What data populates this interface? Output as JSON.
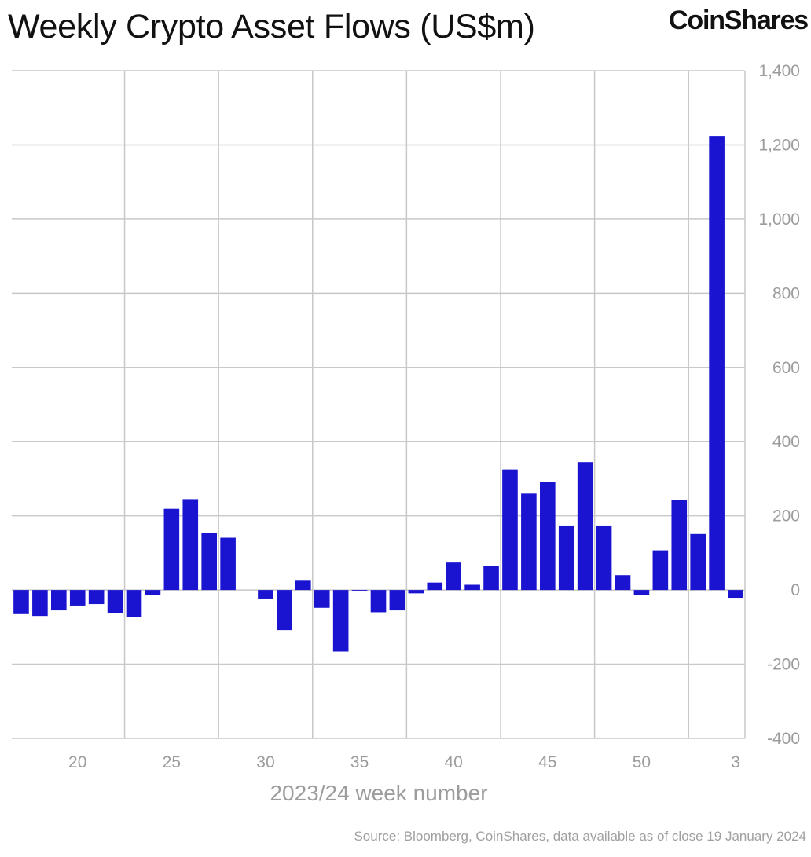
{
  "header": {
    "title": "Weekly Crypto Asset Flows (US$m)",
    "brand": "CoinShares"
  },
  "footer": {
    "source": "Source: Bloomberg, CoinShares, data available as of close 19 January 2024"
  },
  "colors": {
    "bar": "#1a14d1",
    "grid": "#c8c8c8",
    "tick_text": "#9c9c9c"
  },
  "chart_data": {
    "type": "bar",
    "xlabel": "2023/24 week number",
    "ylabel": "",
    "ylim": [
      -400,
      1400
    ],
    "yticks": [
      -400,
      -200,
      0,
      200,
      400,
      600,
      800,
      1000,
      1200,
      1400
    ],
    "ytick_labels": [
      "-400",
      "-200",
      "0",
      "200",
      "400",
      "600",
      "800",
      "1,000",
      "1,200",
      "1,400"
    ],
    "y_axis_side": "right",
    "grid": true,
    "legend": "none",
    "categories": [
      "17",
      "18",
      "19",
      "20",
      "21",
      "22",
      "23",
      "24",
      "25",
      "26",
      "27",
      "28",
      "29",
      "30",
      "31",
      "32",
      "33",
      "34",
      "35",
      "36",
      "37",
      "38",
      "39",
      "40",
      "41",
      "42",
      "43",
      "44",
      "45",
      "46",
      "47",
      "48",
      "49",
      "50",
      "51",
      "52",
      "1",
      "2",
      "3"
    ],
    "xtick_labels": [
      {
        "index": 3,
        "label": "20"
      },
      {
        "index": 8,
        "label": "25"
      },
      {
        "index": 13,
        "label": "30"
      },
      {
        "index": 18,
        "label": "35"
      },
      {
        "index": 23,
        "label": "40"
      },
      {
        "index": 28,
        "label": "45"
      },
      {
        "index": 33,
        "label": "50"
      },
      {
        "index": 38,
        "label": "3"
      }
    ],
    "values": [
      -65,
      -70,
      -55,
      -42,
      -38,
      -62,
      -72,
      -14,
      219,
      245,
      153,
      141,
      0,
      -23,
      -108,
      25,
      -48,
      -166,
      -4,
      -60,
      -55,
      -9,
      20,
      74,
      14,
      65,
      325,
      260,
      292,
      174,
      345,
      174,
      40,
      -14,
      107,
      242,
      151,
      1224,
      -21
    ]
  }
}
